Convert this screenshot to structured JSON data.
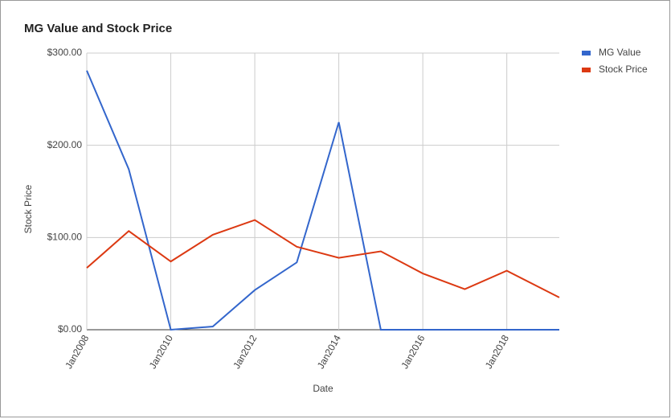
{
  "chart_data": {
    "type": "line",
    "title": "MG Value and Stock Price",
    "x_label": "Date",
    "y_label": "Stock Price",
    "x": [
      2008,
      2009,
      2010,
      2011,
      2012,
      2013,
      2014,
      2015,
      2016,
      2017,
      2018,
      2019.25
    ],
    "series": [
      {
        "name": "MG Value",
        "color": "#3366cc",
        "values": [
          281,
          174,
          0,
          3.5,
          43,
          73,
          225,
          0,
          0,
          0,
          0,
          0
        ]
      },
      {
        "name": "Stock Price",
        "color": "#dc3912",
        "values": [
          67,
          107,
          74,
          103,
          119,
          90,
          78,
          85,
          61,
          44,
          64,
          35
        ]
      }
    ],
    "xlim": [
      2008,
      2019.25
    ],
    "xticks": [
      {
        "value": 2008,
        "label": "Jan2008"
      },
      {
        "value": 2010,
        "label": "Jan2010"
      },
      {
        "value": 2012,
        "label": "Jan2012"
      },
      {
        "value": 2014,
        "label": "Jan2014"
      },
      {
        "value": 2016,
        "label": "Jan2016"
      },
      {
        "value": 2018,
        "label": "Jan2018"
      }
    ],
    "ylim": [
      0,
      300
    ],
    "yticks": [
      {
        "value": 0,
        "label": "$0.00"
      },
      {
        "value": 100,
        "label": "$100.00"
      },
      {
        "value": 200,
        "label": "$200.00"
      },
      {
        "value": 300,
        "label": "$300.00"
      }
    ],
    "grid": true,
    "legend": "right"
  }
}
